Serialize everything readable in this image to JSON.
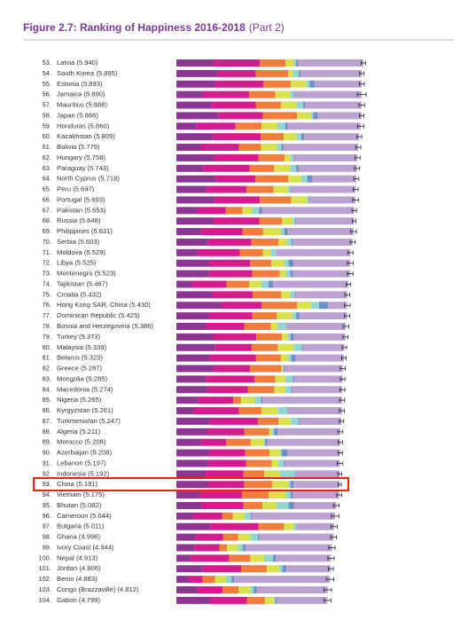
{
  "chart_data": {
    "type": "stacked-bar",
    "orientation": "horizontal",
    "title": "Figure 2.7: Ranking of Happiness 2016-2018",
    "subtitle": "(Part 2)",
    "ranks": [
      "53.",
      "54.",
      "55.",
      "56.",
      "57.",
      "58.",
      "59.",
      "60.",
      "61.",
      "62.",
      "63.",
      "64.",
      "65.",
      "66.",
      "67.",
      "68.",
      "69.",
      "70.",
      "71.",
      "72.",
      "73.",
      "74.",
      "75.",
      "76.",
      "77.",
      "78.",
      "79.",
      "80.",
      "81.",
      "82.",
      "83.",
      "84.",
      "85.",
      "86.",
      "87.",
      "88.",
      "89.",
      "90.",
      "91.",
      "92.",
      "93.",
      "94.",
      "95.",
      "96.",
      "97.",
      "98.",
      "99.",
      "100.",
      "101.",
      "102.",
      "103.",
      "104."
    ],
    "categories": [
      "Latvia (5.940)",
      "South Korea (5.895)",
      "Estonia (5.893)",
      "Jamaica (5.890)",
      "Mauritius (5.888)",
      "Japan (5.886)",
      "Honduras (5.860)",
      "Kazakhstan (5.809)",
      "Bolivia (5.779)",
      "Hungary (5.758)",
      "Paraguay (5.743)",
      "North Cyprus (5.718)",
      "Peru (5.697)",
      "Portugal (5.693)",
      "Pakistan (5.653)",
      "Russia (5.648)",
      "Philippines (5.631)",
      "Serbia (5.603)",
      "Moldova (5.529)",
      "Libya (5.525)",
      "Montenegro (5.523)",
      "Tajikistan (5.467)",
      "Croatia (5.432)",
      "Hong Kong SAR, China (5.430)",
      "Dominican Republic (5.425)",
      "Bosnia and Herzegovina (5.386)",
      "Turkey (5.373)",
      "Malaysia (5.339)",
      "Belarus (5.323)",
      "Greece (5.287)",
      "Mongolia (5.285)",
      "Macedonia (5.274)",
      "Nigeria (5.265)",
      "Kyrgyzstan (5.261)",
      "Turkmenistan (5.247)",
      "Algeria (5.211)",
      "Morocco (5.208)",
      "Azerbaijan (5.208)",
      "Lebanon (5.197)",
      "Indonesia (5.192)",
      "China (5.191)",
      "Vietnam (5.175)",
      "Bhutan (5.082)",
      "Cameroon (5.044)",
      "Bulgaria (5.011)",
      "Ghana (4.996)",
      "Ivory Coast (4.944)",
      "Nepal (4.913)",
      "Jordan (4.906)",
      "Benin (4.883)",
      "Congo (Brazzaville) (4.812)",
      "Gabon (4.799)"
    ],
    "xlim": [
      0,
      8
    ],
    "series": [
      {
        "color": "#8c3592",
        "values": [
          1.187,
          1.301,
          1.237,
          0.831,
          1.12,
          1.327,
          0.642,
          1.173,
          0.776,
          1.201,
          0.855,
          1.263,
          0.96,
          1.221,
          0.677,
          1.183,
          0.807,
          1.004,
          0.685,
          1.044,
          1.051,
          0.493,
          1.155,
          1.438,
          1.015,
          0.945,
          1.183,
          1.221,
          1.067,
          1.181,
          0.948,
          0.983,
          0.696,
          0.551,
          1.052,
          1.002,
          0.801,
          1.043,
          0.987,
          0.931,
          1.029,
          0.741,
          0.813,
          0.549,
          1.092,
          0.611,
          0.569,
          0.446,
          0.837,
          0.393,
          0.673,
          1.057
        ]
      },
      {
        "color": "#d61b8f",
        "values": [
          1.465,
          1.219,
          1.528,
          1.478,
          1.402,
          1.419,
          1.236,
          1.508,
          1.209,
          1.41,
          1.475,
          1.252,
          1.274,
          1.431,
          0.886,
          1.452,
          1.293,
          1.383,
          1.328,
          1.303,
          1.361,
          1.098,
          1.266,
          1.277,
          1.401,
          1.212,
          1.36,
          1.171,
          1.465,
          1.156,
          1.531,
          1.294,
          1.111,
          1.438,
          1.538,
          1.16,
          0.782,
          1.147,
          1.224,
          1.203,
          1.125,
          1.346,
          1.321,
          0.91,
          1.513,
          0.868,
          0.808,
          1.226,
          1.225,
          0.437,
          0.799,
          1.183
        ]
      },
      {
        "color": "#f07d3c",
        "values": [
          0.812,
          1.036,
          0.874,
          0.831,
          0.798,
          1.088,
          0.828,
          0.729,
          0.706,
          0.828,
          0.777,
          1.042,
          0.854,
          0.999,
          0.535,
          0.726,
          0.657,
          0.854,
          0.739,
          0.673,
          0.871,
          0.718,
          0.914,
          1.122,
          0.779,
          0.845,
          0.808,
          0.828,
          0.789,
          0.999,
          0.667,
          0.838,
          0.245,
          0.723,
          0.657,
          0.785,
          0.782,
          0.769,
          0.815,
          0.66,
          0.893,
          0.851,
          0.604,
          0.331,
          0.815,
          0.486,
          0.232,
          0.677,
          0.815,
          0.397,
          0.508,
          0.571
        ]
      },
      {
        "color": "#d9e24c",
        "values": [
          0.264,
          0.159,
          0.495,
          0.49,
          0.498,
          0.445,
          0.507,
          0.41,
          0.511,
          0.199,
          0.514,
          0.417,
          0.455,
          0.508,
          0.313,
          0.334,
          0.558,
          0.282,
          0.245,
          0.416,
          0.197,
          0.389,
          0.296,
          0.44,
          0.497,
          0.212,
          0.195,
          0.508,
          0.235,
          0.067,
          0.317,
          0.345,
          0.426,
          0.508,
          0.394,
          0.086,
          0.418,
          0.351,
          0.216,
          0.491,
          0.521,
          0.543,
          0.457,
          0.381,
          0.311,
          0.381,
          0.352,
          0.439,
          0.383,
          0.349,
          0.372,
          0.295
        ]
      },
      {
        "color": "#93d5d3",
        "values": [
          0.075,
          0.175,
          0.103,
          0.107,
          0.215,
          0.069,
          0.246,
          0.146,
          0.137,
          0.081,
          0.184,
          0.191,
          0.083,
          0.047,
          0.22,
          0.082,
          0.117,
          0.137,
          0.181,
          0.133,
          0.142,
          0.23,
          0.119,
          0.258,
          0.113,
          0.263,
          0.083,
          0.26,
          0.094,
          0.0,
          0.235,
          0.185,
          0.215,
          0.3,
          0.244,
          0.073,
          0.036,
          0.035,
          0.166,
          0.498,
          0.058,
          0.147,
          0.37,
          0.187,
          0.081,
          0.245,
          0.154,
          0.285,
          0.11,
          0.175,
          0.105,
          0.043
        ]
      },
      {
        "color": "#6f8fc9",
        "values": [
          0.064,
          0.056,
          0.161,
          0.028,
          0.06,
          0.14,
          0.078,
          0.096,
          0.064,
          0.02,
          0.08,
          0.162,
          0.027,
          0.025,
          0.098,
          0.031,
          0.107,
          0.039,
          0.0,
          0.152,
          0.08,
          0.144,
          0.022,
          0.287,
          0.101,
          0.006,
          0.106,
          0.024,
          0.142,
          0.034,
          0.038,
          0.034,
          0.041,
          0.023,
          0.028,
          0.114,
          0.076,
          0.182,
          0.027,
          0.028,
          0.1,
          0.073,
          0.167,
          0.037,
          0.004,
          0.04,
          0.09,
          0.089,
          0.13,
          0.082,
          0.093,
          0.055
        ]
      },
      {
        "color": "#bba2d2",
        "values": [
          2.073,
          1.949,
          1.495,
          2.125,
          1.795,
          1.398,
          2.323,
          1.747,
          2.376,
          2.019,
          1.858,
          1.391,
          2.044,
          1.462,
          2.924,
          1.84,
          2.092,
          1.904,
          2.351,
          1.804,
          1.821,
          2.395,
          1.66,
          0.608,
          1.519,
          1.903,
          1.638,
          1.327,
          1.531,
          1.85,
          1.549,
          1.595,
          2.531,
          1.718,
          1.334,
          1.991,
          2.313,
          1.681,
          1.762,
          1.381,
          1.465,
          1.474,
          1.35,
          2.649,
          1.195,
          2.365,
          2.739,
          1.751,
          1.406,
          3.05,
          2.262,
          1.595
        ]
      }
    ],
    "errors": [
      0.07,
      0.07,
      0.08,
      0.14,
      0.09,
      0.07,
      0.1,
      0.08,
      0.08,
      0.08,
      0.08,
      0.08,
      0.08,
      0.09,
      0.07,
      0.06,
      0.09,
      0.08,
      0.08,
      0.09,
      0.09,
      0.07,
      0.08,
      0.09,
      0.09,
      0.09,
      0.08,
      0.07,
      0.07,
      0.08,
      0.07,
      0.08,
      0.08,
      0.08,
      0.07,
      0.08,
      0.07,
      0.07,
      0.09,
      0.06,
      0.05,
      0.08,
      0.09,
      0.12,
      0.1,
      0.09,
      0.1,
      0.1,
      0.08,
      0.12,
      0.12,
      0.11
    ]
  }
}
